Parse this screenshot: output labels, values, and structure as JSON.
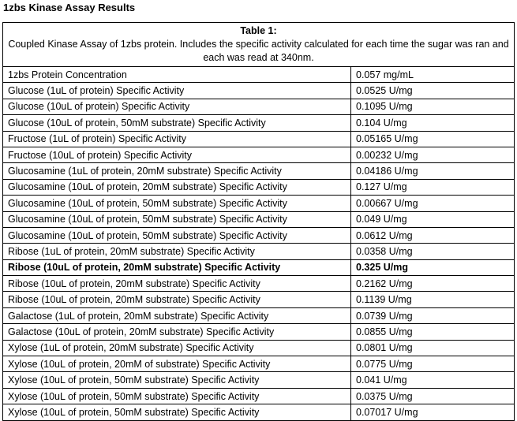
{
  "header": {
    "title": "1zbs Kinase Assay Results"
  },
  "table": {
    "caption_label": "Table 1:",
    "caption": "Coupled Kinase Assay of 1zbs protein. Includes the specific activity calculated for each time the sugar was ran and each was read at 340nm.",
    "rows": [
      [
        "1zbs Protein Concentration",
        "0.057 mg/mL"
      ],
      [
        "Glucose (1uL of protein) Specific Activity",
        "0.0525 U/mg"
      ],
      [
        "Glucose (10uL of protein) Specific Activity",
        "0.1095 U/mg"
      ],
      [
        "Glucose (10uL of protein, 50mM substrate) Specific Activity",
        "0.104 U/mg"
      ],
      [
        "Fructose (1uL of protein) Specific Activity",
        "0.05165 U/mg"
      ],
      [
        "Fructose (10uL of protein) Specific Activity",
        "0.00232 U/mg"
      ],
      [
        "Glucosamine (1uL of protein, 20mM substrate) Specific Activity",
        "0.04186 U/mg"
      ],
      [
        "Glucosamine (10uL of protein, 20mM substrate) Specific Activity",
        "0.127 U/mg"
      ],
      [
        "Glucosamine (10uL of protein, 50mM substrate) Specific Activity",
        "0.00667 U/mg"
      ],
      [
        "Glucosamine (10uL of protein, 50mM substrate) Specific Activity",
        "0.049 U/mg"
      ],
      [
        "Glucosamine (10uL of protein, 50mM substrate) Specific Activity",
        "0.0612 U/mg"
      ],
      [
        "Ribose (1uL of protein, 20mM substrate) Specific Activity",
        "0.0358 U/mg"
      ],
      [
        "Ribose (10uL of protein, 20mM substrate) Specific Activity",
        "0.325 U/mg"
      ],
      [
        "Ribose (10uL of protein, 20mM substrate) Specific Activity",
        "0.2162 U/mg"
      ],
      [
        "Ribose (10uL of protein, 20mM substrate) Specific Activity",
        "0.1139 U/mg"
      ],
      [
        "Galactose (1uL of protein, 20mM substrate) Specific Activity",
        "0.0739 U/mg"
      ],
      [
        "Galactose (10uL of protein, 20mM substrate) Specific Activity",
        "0.0855 U/mg"
      ],
      [
        "Xylose (1uL of protein, 20mM substrate) Specific Activity",
        "0.0801 U/mg"
      ],
      [
        "Xylose (10uL of protein, 20mM of substrate) Specific Activity",
        "0.0775 U/mg"
      ],
      [
        "Xylose (10uL of protein, 50mM substrate) Specific Activity",
        "0.041 U/mg"
      ],
      [
        "Xylose (10uL of protein, 50mM substrate) Specific Activity",
        "0.0375 U/mg"
      ],
      [
        "Xylose (10uL of protein, 50mM substrate) Specific Activity",
        "0.07017 U/mg"
      ]
    ]
  }
}
